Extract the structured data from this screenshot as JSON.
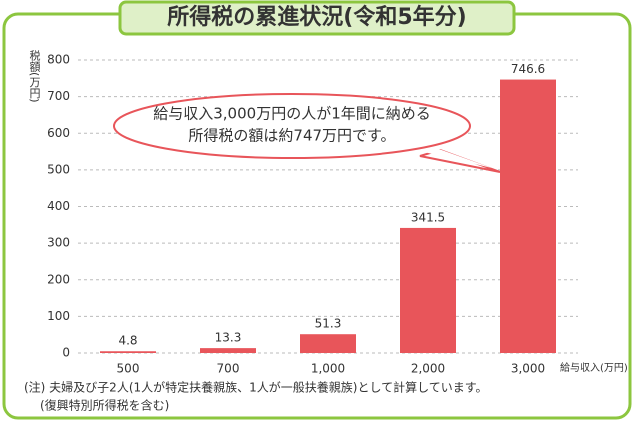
{
  "chart_data": {
    "type": "bar",
    "title": "所得税の累進状況(令和5年分)",
    "y_label": "税額(万円)",
    "x_label": "給与収入(万円)",
    "categories": [
      "500",
      "700",
      "1,000",
      "2,000",
      "3,000"
    ],
    "values": [
      4.8,
      13.3,
      51.3,
      341.5,
      746.6
    ],
    "color": "#e8555a",
    "ylim": [
      0,
      800
    ],
    "yticks": [
      0,
      100,
      200,
      300,
      400,
      500,
      600,
      700,
      800
    ],
    "grid": true,
    "annotation": [
      "給与収入3,000万円の人が1年間に納める",
      "所得税の額は約747万円です。"
    ],
    "notes": [
      "(注) 夫婦及び子2人(1人が特定扶養親族、1人が一般扶養親族)として計算しています。",
      "(復興特別所得税を含む)"
    ]
  }
}
